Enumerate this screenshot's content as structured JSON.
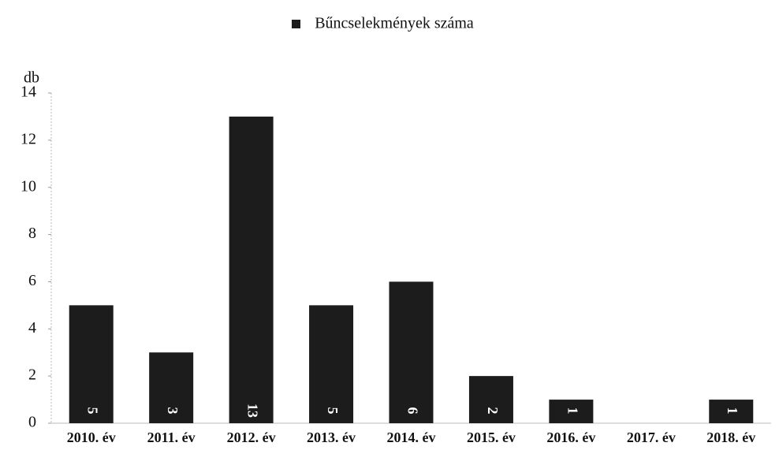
{
  "chart_data": {
    "type": "bar",
    "y_label": "db",
    "categories": [
      "2010. év",
      "2011. év",
      "2012. év",
      "2013. év",
      "2014. év",
      "2015. év",
      "2016. év",
      "2017. év",
      "2018. év"
    ],
    "series": [
      {
        "name": "Bűncselekmények száma",
        "color": "#1c1c1c",
        "values": [
          5,
          3,
          13,
          5,
          6,
          2,
          1,
          0,
          1
        ]
      }
    ],
    "ylim": [
      0,
      14
    ],
    "yticks": [
      0,
      2,
      4,
      6,
      8,
      10,
      12,
      14
    ],
    "grid": false,
    "legend": "top"
  }
}
